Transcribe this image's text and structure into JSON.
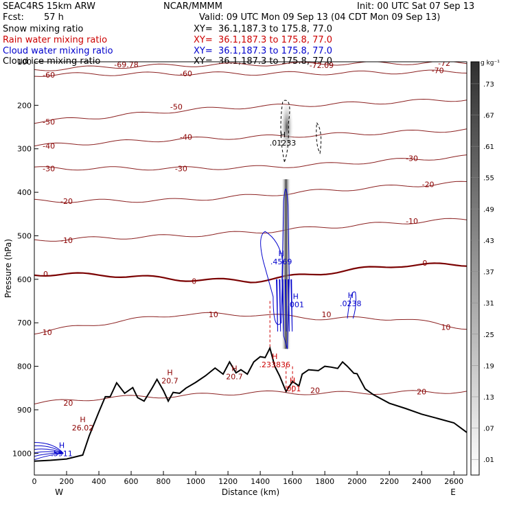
{
  "header": {
    "model": "SEAC4RS 15km ARW",
    "org": "NCAR/MMMM",
    "init": "Init: 00 UTC Sat 07 Sep 13",
    "fcst_label": "Fcst:",
    "fcst_value": "57 h",
    "valid": "Valid: 09 UTC Mon 09 Sep 13 (04 CDT Mon 09 Sep 13)"
  },
  "fields": [
    {
      "name": "Snow mixing ratio",
      "xy": "XY=  36.1,187.3 to 175.8, 77.0",
      "color": "#000000"
    },
    {
      "name": "Rain water mixing ratio",
      "xy": "XY=  36.1,187.3 to 175.8, 77.0",
      "color": "#cc0000"
    },
    {
      "name": "Cloud water mixing ratio",
      "xy": "XY=  36.1,187.3 to 175.8, 77.0",
      "color": "#0000cc"
    },
    {
      "name": "Cloud ice mixing ratio",
      "xy": "XY=  36.1,187.3 to 175.8, 77.0",
      "color": "#000000"
    }
  ],
  "colorbar": {
    "unit": "g kg⁻¹",
    "labels": [
      ".73",
      ".67",
      ".61",
      ".55",
      ".49",
      ".43",
      ".37",
      ".31",
      ".25",
      ".19",
      ".13",
      ".07",
      ".01"
    ]
  },
  "chart_data": {
    "type": "line",
    "xlabel": "Distance (km)",
    "ylabel": "Pressure (hPa)",
    "xlim": [
      0,
      2680
    ],
    "ylim": [
      1050,
      100
    ],
    "xticks": [
      0,
      200,
      400,
      600,
      800,
      1000,
      1200,
      1400,
      1600,
      1800,
      2000,
      2200,
      2400,
      2600
    ],
    "yticks": [
      100,
      200,
      300,
      400,
      500,
      600,
      700,
      800,
      900,
      1000
    ],
    "endpoints": {
      "left": "W",
      "right": "E"
    },
    "temperature_isotherms_c": [
      -70,
      -60,
      -50,
      -40,
      -30,
      -20,
      -10,
      0,
      10,
      20
    ],
    "isotherm_labels": [
      {
        "x": 90,
        "p": 130,
        "text": "-60"
      },
      {
        "x": 940,
        "p": 127,
        "text": "-60"
      },
      {
        "x": 90,
        "p": 238,
        "text": "-50"
      },
      {
        "x": 880,
        "p": 203,
        "text": "-50"
      },
      {
        "x": 90,
        "p": 293,
        "text": "-40"
      },
      {
        "x": 940,
        "p": 273,
        "text": "-40"
      },
      {
        "x": 90,
        "p": 345,
        "text": "-30"
      },
      {
        "x": 910,
        "p": 345,
        "text": "-30"
      },
      {
        "x": 2340,
        "p": 322,
        "text": "-30"
      },
      {
        "x": 200,
        "p": 420,
        "text": "-20"
      },
      {
        "x": 2440,
        "p": 382,
        "text": "-20"
      },
      {
        "x": 200,
        "p": 510,
        "text": "-10"
      },
      {
        "x": 2340,
        "p": 466,
        "text": "-10"
      },
      {
        "x": 70,
        "p": 588,
        "text": "0"
      },
      {
        "x": 990,
        "p": 604,
        "text": "0"
      },
      {
        "x": 2420,
        "p": 562,
        "text": "0"
      },
      {
        "x": 1110,
        "p": 681,
        "text": "10"
      },
      {
        "x": 80,
        "p": 722,
        "text": "10"
      },
      {
        "x": 1810,
        "p": 681,
        "text": "10"
      },
      {
        "x": 2550,
        "p": 710,
        "text": "10"
      },
      {
        "x": 210,
        "p": 884,
        "text": "20"
      },
      {
        "x": 2400,
        "p": 858,
        "text": "20"
      },
      {
        "x": 1740,
        "p": 855,
        "text": "20"
      },
      {
        "x": 2500,
        "p": 120,
        "text": "-70"
      },
      {
        "x": 2540,
        "p": 103,
        "text": "-72"
      },
      {
        "x": 1780,
        "p": 108,
        "text": "-72.09"
      },
      {
        "x": 570,
        "p": 106,
        "text": "-69.78"
      }
    ],
    "maxima": [
      {
        "x": 1540,
        "p": 283,
        "value": ".01233",
        "color": "#000000"
      },
      {
        "x": 1530,
        "p": 556,
        "value": ".4569",
        "color": "#0000cc"
      },
      {
        "x": 1620,
        "p": 655,
        "value": ".001",
        "color": "#0000cc"
      },
      {
        "x": 1960,
        "p": 652,
        "value": ".0238",
        "color": "#0000cc"
      },
      {
        "x": 840,
        "p": 830,
        "value": "20.7",
        "color": "#8b0000"
      },
      {
        "x": 1240,
        "p": 820,
        "value": "20.7",
        "color": "#8b0000"
      },
      {
        "x": 1490,
        "p": 793,
        "value": ".233836",
        "color": "#cc0000"
      },
      {
        "x": 1600,
        "p": 848,
        "value": ".001",
        "color": "#cc0000"
      },
      {
        "x": 300,
        "p": 938,
        "value": "26.02",
        "color": "#8b0000"
      },
      {
        "x": 170,
        "p": 997,
        "value": ".5911",
        "color": "#0000cc"
      }
    ],
    "terrain": [
      [
        0,
        1018
      ],
      [
        100,
        1016
      ],
      [
        200,
        1013
      ],
      [
        300,
        1004
      ],
      [
        340,
        960
      ],
      [
        400,
        905
      ],
      [
        440,
        870
      ],
      [
        470,
        870
      ],
      [
        510,
        838
      ],
      [
        560,
        862
      ],
      [
        610,
        849
      ],
      [
        640,
        872
      ],
      [
        680,
        880
      ],
      [
        730,
        850
      ],
      [
        760,
        830
      ],
      [
        800,
        856
      ],
      [
        830,
        880
      ],
      [
        860,
        860
      ],
      [
        900,
        862
      ],
      [
        940,
        850
      ],
      [
        1000,
        837
      ],
      [
        1060,
        822
      ],
      [
        1120,
        804
      ],
      [
        1170,
        818
      ],
      [
        1210,
        790
      ],
      [
        1250,
        815
      ],
      [
        1280,
        808
      ],
      [
        1320,
        818
      ],
      [
        1360,
        790
      ],
      [
        1400,
        778
      ],
      [
        1430,
        780
      ],
      [
        1460,
        758
      ],
      [
        1490,
        800
      ],
      [
        1520,
        822
      ],
      [
        1560,
        858
      ],
      [
        1600,
        835
      ],
      [
        1640,
        845
      ],
      [
        1660,
        818
      ],
      [
        1700,
        808
      ],
      [
        1760,
        810
      ],
      [
        1800,
        800
      ],
      [
        1840,
        802
      ],
      [
        1880,
        805
      ],
      [
        1910,
        790
      ],
      [
        1940,
        800
      ],
      [
        1980,
        816
      ],
      [
        2000,
        817
      ],
      [
        2050,
        852
      ],
      [
        2100,
        865
      ],
      [
        2200,
        885
      ],
      [
        2300,
        897
      ],
      [
        2400,
        910
      ],
      [
        2500,
        920
      ],
      [
        2600,
        930
      ],
      [
        2680,
        952
      ]
    ]
  }
}
